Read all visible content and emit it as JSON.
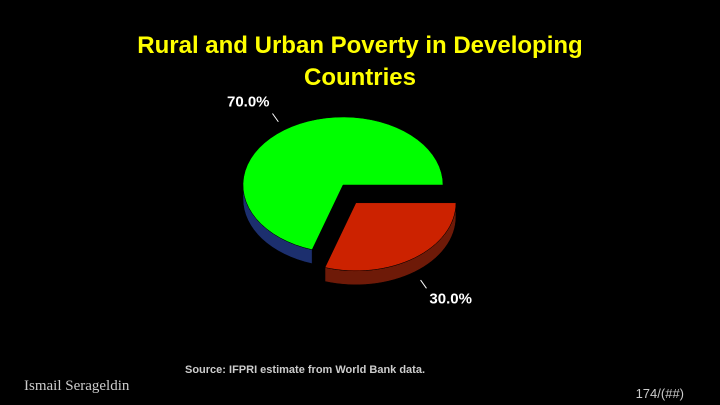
{
  "chart_data": {
    "type": "pie",
    "title": "Rural and Urban Poverty in Developing Countries",
    "values": [
      70,
      30
    ],
    "value_labels": [
      "70.0%",
      "30.0%"
    ],
    "colors": [
      "#00ff00",
      "#cc2200"
    ],
    "side_colors": [
      "#1c2f6e",
      "#6e1a08"
    ],
    "exploded": [
      false,
      true
    ],
    "source": "Source:  IFPRI estimate from World Bank data."
  },
  "slide": {
    "author": "Ismail Serageldin",
    "page": "174/(##)"
  }
}
